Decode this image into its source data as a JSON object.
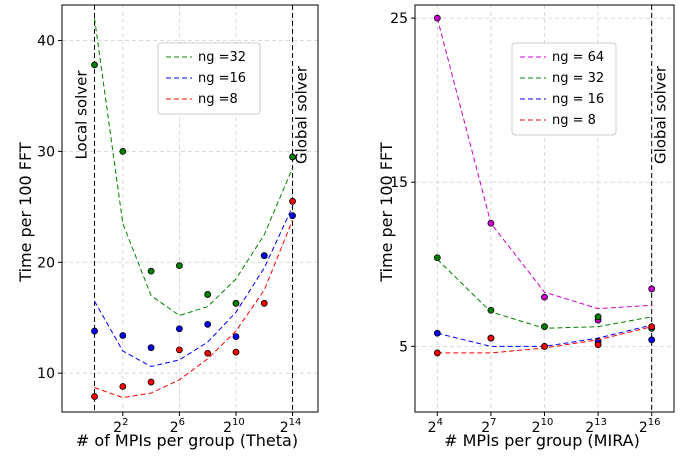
{
  "chart_data": [
    {
      "type": "line",
      "xlabel": "# of MPIs per group (Theta)",
      "ylabel": "Time per 100 FFT",
      "x_scale": "log2",
      "xlim_exp": [
        -2.3,
        15.8
      ],
      "ylim": [
        6.5,
        43.2
      ],
      "x_ticks": [
        {
          "base": "2",
          "exp": "2",
          "value": 4
        },
        {
          "base": "2",
          "exp": "6",
          "value": 64
        },
        {
          "base": "2",
          "exp": "10",
          "value": 1024
        },
        {
          "base": "2",
          "exp": "14",
          "value": 16384
        }
      ],
      "y_ticks": [
        10,
        20,
        30,
        40
      ],
      "grid": true,
      "legend_placement": "upper-right",
      "vlines": [
        {
          "x": 1,
          "label": "Local solver"
        },
        {
          "x": 16384,
          "label": "Global solver"
        }
      ],
      "x": [
        1,
        4,
        16,
        64,
        256,
        1024,
        4096,
        16384
      ],
      "series": [
        {
          "name": "ng =32",
          "color": "#008000",
          "line": [
            42,
            23.5,
            17,
            15.2,
            16,
            18.5,
            22.5,
            28.5
          ],
          "points": [
            37.8,
            30,
            19.2,
            19.7,
            17.1,
            16.3,
            20.6,
            29.5
          ]
        },
        {
          "name": "ng =16",
          "color": "#0000ff",
          "line": [
            16.5,
            12,
            10.6,
            11.2,
            12.8,
            15.5,
            19.5,
            25
          ],
          "points": [
            13.8,
            13.4,
            12.3,
            14,
            14.4,
            13.3,
            20.6,
            24.2
          ]
        },
        {
          "name": "ng =8",
          "color": "#ff0000",
          "line": [
            8.7,
            7.8,
            8.2,
            9.4,
            11.3,
            13.8,
            17.5,
            23.8
          ],
          "points": [
            7.9,
            8.8,
            9.2,
            12.1,
            11.8,
            11.9,
            16.3,
            25.5
          ]
        }
      ]
    },
    {
      "type": "line",
      "xlabel": "# MPIs per group (MIRA)",
      "ylabel": "Time per 100 FFT",
      "x_scale": "log2",
      "xlim_exp": [
        2.75,
        17.25
      ],
      "ylim": [
        1,
        25.8
      ],
      "x_ticks": [
        {
          "base": "2",
          "exp": "4",
          "value": 16
        },
        {
          "base": "2",
          "exp": "7",
          "value": 128
        },
        {
          "base": "2",
          "exp": "10",
          "value": 1024
        },
        {
          "base": "2",
          "exp": "13",
          "value": 8192
        },
        {
          "base": "2",
          "exp": "16",
          "value": 65536
        }
      ],
      "y_ticks": [
        5,
        15,
        25
      ],
      "grid": true,
      "legend_placement": "upper-right",
      "vlines": [
        {
          "x": 65536,
          "label": "Global solver"
        }
      ],
      "x": [
        16,
        128,
        1024,
        8192,
        65536
      ],
      "series": [
        {
          "name": "ng = 64",
          "color": "#cc00cc",
          "line": [
            25,
            12.5,
            8.3,
            7.3,
            7.5
          ],
          "points": [
            25,
            12.5,
            8,
            6.6,
            8.5
          ]
        },
        {
          "name": "ng = 32",
          "color": "#008000",
          "line": [
            10.3,
            7.1,
            6.1,
            6.2,
            6.8
          ],
          "points": [
            10.4,
            7.2,
            6.2,
            6.8,
            6.1
          ]
        },
        {
          "name": "ng = 16",
          "color": "#0000ff",
          "line": [
            5.8,
            5,
            5,
            5.5,
            6.3
          ],
          "points": [
            5.8,
            5.5,
            5,
            5.3,
            5.4
          ]
        },
        {
          "name": "ng = 8",
          "color": "#ff0000",
          "line": [
            4.6,
            4.6,
            4.9,
            5.4,
            6.2
          ],
          "points": [
            4.6,
            5.5,
            5,
            5.1,
            6.2
          ]
        }
      ]
    }
  ]
}
